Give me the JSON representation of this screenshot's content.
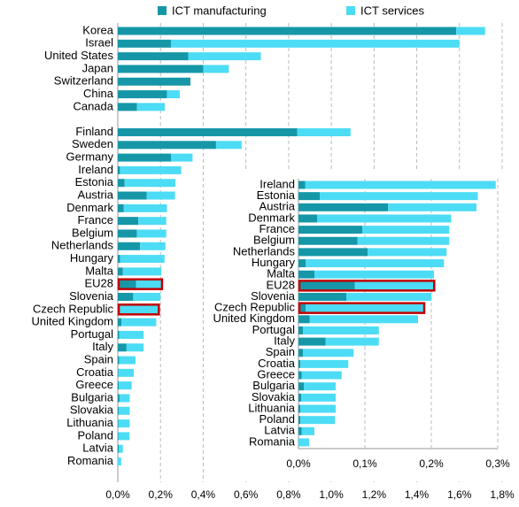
{
  "chart_data": [
    {
      "type": "stacked-barh",
      "categories": [
        "Korea",
        "Israel",
        "United States",
        "Japan",
        "Switzerland",
        "China",
        "Canada",
        null,
        "Finland",
        "Sweden",
        "Germany",
        "Ireland",
        "Estonia",
        "Austria",
        "Denmark",
        "France",
        "Belgium",
        "Netherlands",
        "Hungary",
        "Malta",
        "EU28",
        "Slovenia",
        "Czech Republic",
        "United Kingdom",
        "Portugal",
        "Italy",
        "Spain",
        "Croatia",
        "Greece",
        "Bulgaria",
        "Slovakia",
        "Lithuania",
        "Poland",
        "Latvia",
        "Romania"
      ],
      "series": [
        {
          "name": "ICT manufacturing",
          "color": "#1597a8",
          "values": [
            1.585,
            0.25,
            0.33,
            0.4,
            0.34,
            0.23,
            0.09,
            null,
            0.84,
            0.46,
            0.25,
            0.01,
            0.032,
            0.135,
            0.028,
            0.096,
            0.089,
            0.104,
            0.011,
            0.024,
            0.085,
            0.072,
            0.011,
            0.017,
            0.007,
            0.041,
            0.007,
            0.003,
            0.005,
            0.008,
            0.004,
            0.003,
            0.003,
            0.005,
            0
          ]
        },
        {
          "name": "ICT services",
          "color": "#4ddcf5",
          "values": [
            0.135,
            1.35,
            0.34,
            0.12,
            0,
            0.06,
            0.13,
            null,
            0.25,
            0.12,
            0.1,
            0.287,
            0.238,
            0.133,
            0.202,
            0.131,
            0.138,
            0.119,
            0.208,
            0.18,
            0.118,
            0.128,
            0.177,
            0.163,
            0.114,
            0.08,
            0.076,
            0.072,
            0.06,
            0.048,
            0.052,
            0.053,
            0.052,
            0.019,
            0.016
          ]
        }
      ],
      "xlim": [
        0,
        1.8
      ],
      "xticks": [
        {
          "value": 0,
          "label": "0,0%"
        },
        {
          "value": 0.2,
          "label": "0,2%"
        },
        {
          "value": 0.4,
          "label": "0,4%"
        },
        {
          "value": 0.6,
          "label": "0,6%"
        },
        {
          "value": 0.8,
          "label": "0,8%"
        },
        {
          "value": 1.0,
          "label": "1,0%"
        },
        {
          "value": 1.2,
          "label": "1,2%"
        },
        {
          "value": 1.4,
          "label": "1,4%"
        },
        {
          "value": 1.6,
          "label": "1,6%"
        },
        {
          "value": 1.8,
          "label": "1,8%"
        }
      ],
      "grid": true,
      "legend": "top",
      "highlight": [
        "EU28",
        "Czech Republic"
      ]
    },
    {
      "type": "stacked-barh",
      "categories": [
        "Ireland",
        "Estonia",
        "Austria",
        "Denmark",
        "France",
        "Belgium",
        "Netherlands",
        "Hungary",
        "Malta",
        "EU28",
        "Slovenia",
        "Czech Republic",
        "United Kingdom",
        "Portugal",
        "Italy",
        "Spain",
        "Croatia",
        "Greece",
        "Bulgaria",
        "Slovakia",
        "Lithuania",
        "Poland",
        "Latvia",
        "Romania"
      ],
      "series": [
        {
          "color": "#1597a8",
          "values": [
            0.01,
            0.032,
            0.135,
            0.028,
            0.096,
            0.089,
            0.104,
            0.011,
            0.024,
            0.085,
            0.072,
            0.011,
            0.017,
            0.007,
            0.041,
            0.007,
            0.003,
            0.005,
            0.008,
            0.004,
            0.003,
            0.003,
            0.005,
            0
          ]
        },
        {
          "color": "#4ddcf5",
          "values": [
            0.287,
            0.238,
            0.133,
            0.202,
            0.131,
            0.138,
            0.119,
            0.208,
            0.18,
            0.118,
            0.128,
            0.177,
            0.163,
            0.114,
            0.08,
            0.076,
            0.072,
            0.06,
            0.048,
            0.052,
            0.053,
            0.052,
            0.019,
            0.016
          ]
        }
      ],
      "xlim": [
        0,
        0.3
      ],
      "xticks": [
        {
          "value": 0,
          "label": "0,0%"
        },
        {
          "value": 0.1,
          "label": "0,1%"
        },
        {
          "value": 0.2,
          "label": "0,2%"
        },
        {
          "value": 0.3,
          "label": "0,3%"
        }
      ],
      "grid": true,
      "highlight": [
        "EU28",
        "Czech Republic"
      ]
    }
  ]
}
